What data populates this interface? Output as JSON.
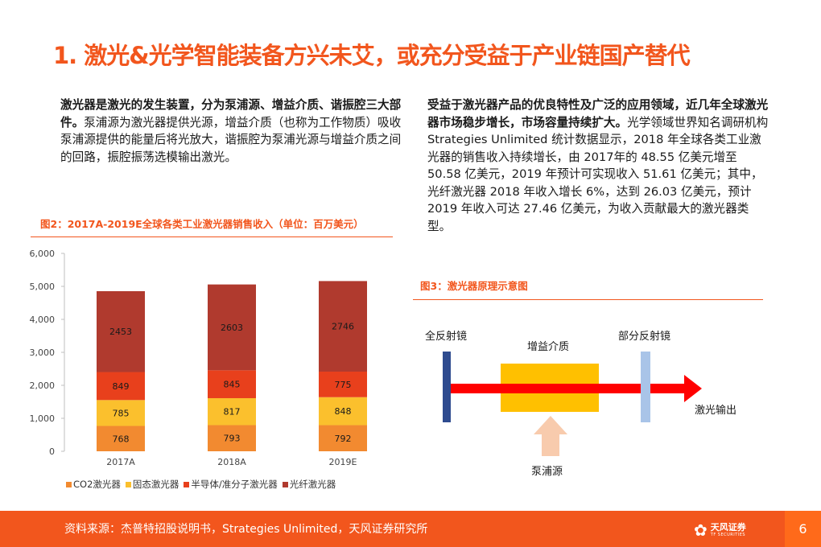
{
  "title": "1. 激光&光学智能装备方兴未艾，或充分受益于产业链国产替代",
  "left_paragraph": {
    "bold": "激光器是激光的发生装置，分为泵浦源、增益介质、谐振腔三大部件。",
    "text": "泵浦源为激光器提供光源，增益介质（也称为工作物质）吸收泵浦源提供的能量后将光放大，谐振腔为泵浦光源与增益介质之间的回路，振腔振荡选模输出激光。"
  },
  "right_paragraph": {
    "bold": "受益于激光器产品的优良特性及广泛的应用领域，近几年全球激光器市场稳步增长，市场容量持续扩大。",
    "text": "光学领域世界知名调研机构 Strategies Unlimited 统计数据显示，2018 年全球各类工业激光器的销售收入持续增长，由 2017年的 48.55 亿美元增至 50.58 亿美元，2019 年预计可实现收入 51.61 亿美元；其中，光纤激光器 2018 年收入增长 6%，达到 26.03 亿美元，预计2019 年收入可达 27.46 亿美元，为收入贡献最大的激光器类型。"
  },
  "figure2": {
    "title": "图2：2017A-2019E全球各类工业激光器销售收入（单位：百万美元）"
  },
  "chart_data": {
    "type": "bar",
    "stacked": true,
    "title": "图2：2017A-2019E全球各类工业激光器销售收入（单位：百万美元）",
    "categories": [
      "2017A",
      "2018A",
      "2019E"
    ],
    "series": [
      {
        "name": "CO2激光器",
        "values": [
          768,
          793,
          792
        ],
        "color": "#f28a30"
      },
      {
        "name": "固态激光器",
        "values": [
          785,
          817,
          848
        ],
        "color": "#fbc02d"
      },
      {
        "name": "半导体/准分子激光器",
        "values": [
          849,
          845,
          775
        ],
        "color": "#e8401c"
      },
      {
        "name": "光纤激光器",
        "values": [
          2453,
          2603,
          2746
        ],
        "color": "#b03a2e"
      }
    ],
    "y_ticks": [
      "0",
      "1,000",
      "2,000",
      "3,000",
      "4,000",
      "5,000",
      "6,000"
    ],
    "ylim": [
      0,
      6000
    ],
    "grid": false,
    "legend_position": "bottom"
  },
  "figure3": {
    "title": "图3：激光器原理示意图",
    "labels": {
      "full_mirror": "全反射镜",
      "gain_medium": "增益介质",
      "partial_mirror": "部分反射镜",
      "laser_output": "激光输出",
      "pump_source": "泵浦源"
    },
    "colors": {
      "mirror_full": "#2e4b8f",
      "mirror_partial": "#a9c4e8",
      "gain_box": "#ffc000",
      "beam": "#ff0000",
      "pump_arrow": "#f8cbad"
    }
  },
  "footer": {
    "source": "资料来源：杰普特招股说明书，Strategies Unlimited，天风证券研究所",
    "logo_name": "天风证券",
    "logo_sub": "TF SECURITIES",
    "page": "6"
  },
  "colors": {
    "accent": "#f2561d",
    "footer_bg": "#f2561d",
    "page_box": "#ff6a1a"
  }
}
